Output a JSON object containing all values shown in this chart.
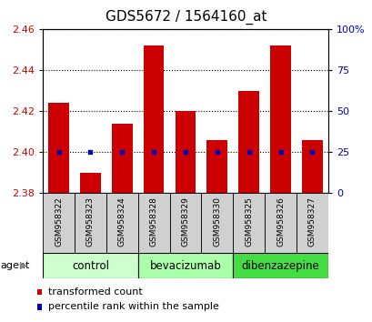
{
  "title": "GDS5672 / 1564160_at",
  "samples": [
    "GSM958322",
    "GSM958323",
    "GSM958324",
    "GSM958328",
    "GSM958329",
    "GSM958330",
    "GSM958325",
    "GSM958326",
    "GSM958327"
  ],
  "transformed_counts": [
    2.424,
    2.39,
    2.414,
    2.452,
    2.42,
    2.406,
    2.43,
    2.452,
    2.406
  ],
  "percentile_ranks": [
    25,
    25,
    25,
    25,
    25,
    25,
    25,
    25,
    25
  ],
  "bar_bottom": 2.38,
  "ylim": [
    2.38,
    2.46
  ],
  "yticks": [
    2.38,
    2.4,
    2.42,
    2.44,
    2.46
  ],
  "right_yticks_vals": [
    0,
    25,
    50,
    75,
    100
  ],
  "right_yticks_labels": [
    "0",
    "25",
    "50",
    "75",
    "100%"
  ],
  "right_ylim": [
    0,
    100
  ],
  "bar_color": "#cc0000",
  "dot_color": "#0000bb",
  "grid_color": "#000000",
  "plot_bg": "#ffffff",
  "agents": [
    {
      "label": "control",
      "span": [
        0,
        3
      ],
      "color": "#ccffcc"
    },
    {
      "label": "bevacizumab",
      "span": [
        3,
        6
      ],
      "color": "#aaffaa"
    },
    {
      "label": "dibenzazepine",
      "span": [
        6,
        9
      ],
      "color": "#44dd44"
    }
  ],
  "agent_label": "agent",
  "legend_bar_label": "transformed count",
  "legend_dot_label": "percentile rank within the sample",
  "title_fontsize": 11,
  "tick_fontsize": 8,
  "sample_fontsize": 6.5,
  "agent_fontsize": 8.5,
  "legend_fontsize": 8
}
